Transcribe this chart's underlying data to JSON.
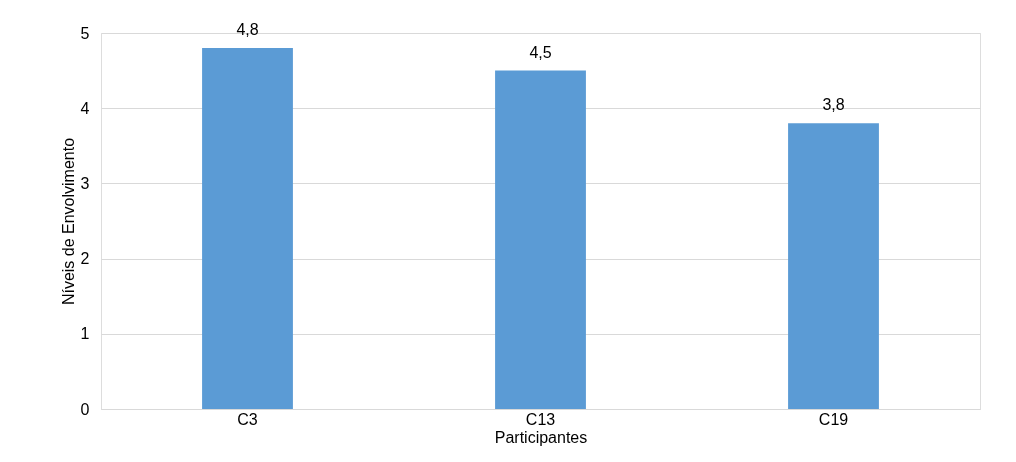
{
  "chart_data": {
    "type": "bar",
    "xlabel": "Participantes",
    "ylabel": "Níveis de Envolvimento",
    "categories": [
      "C3",
      "C13",
      "C19"
    ],
    "values": [
      4.8,
      4.5,
      3.8
    ],
    "value_labels": [
      "4,8",
      "4,5",
      "3,8"
    ],
    "color": "#5b9bd5",
    "ylim": [
      0,
      5
    ],
    "yticks": [
      0,
      1,
      2,
      3,
      4,
      5
    ],
    "grid": "y"
  }
}
